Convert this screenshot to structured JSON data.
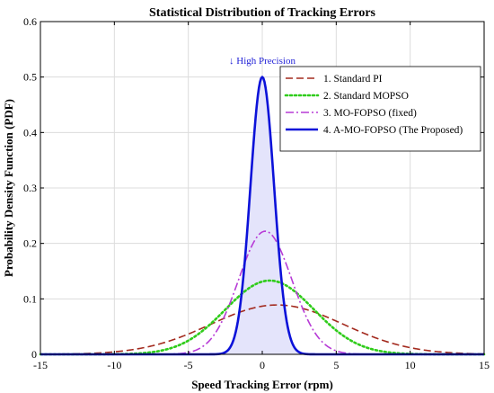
{
  "chart_data": {
    "type": "line",
    "title": "Statistical Distribution of Tracking Errors",
    "xlabel": "Speed Tracking Error (rpm)",
    "ylabel": "Probability Density Function (PDF)",
    "xlim": [
      -15,
      15
    ],
    "ylim": [
      0,
      0.6
    ],
    "xticks": [
      -15,
      -10,
      -5,
      0,
      5,
      10,
      15
    ],
    "yticks": [
      0,
      0.1,
      0.2,
      0.3,
      0.4,
      0.5,
      0.6
    ],
    "grid": true,
    "legend_position": "top-right",
    "annotation": {
      "text": "↓ High Precision",
      "x": 0,
      "y": 0.53,
      "color": "#1f1fd6"
    },
    "series": [
      {
        "name": "1. Standard PI",
        "distribution": "normal",
        "mean": 1.0,
        "std": 4.5,
        "peak": 0.089,
        "color": "#a32a1e",
        "style": "dashed"
      },
      {
        "name": "2. Standard MOPSO",
        "distribution": "normal",
        "mean": 0.5,
        "std": 3.0,
        "peak": 0.133,
        "color": "#2fcc1a",
        "style": "dotted"
      },
      {
        "name": "3. MO-FOPSO (fixed)",
        "distribution": "normal",
        "mean": 0.2,
        "std": 1.8,
        "peak": 0.222,
        "color": "#b73bd6",
        "style": "dashdot"
      },
      {
        "name": "4. A-MO-FOPSO (The Proposed)",
        "distribution": "normal",
        "mean": 0.0,
        "std": 0.8,
        "peak": 0.5,
        "color": "#0c12d9",
        "style": "solid",
        "filled": true,
        "fill_color": "#e4e4fb"
      }
    ]
  }
}
